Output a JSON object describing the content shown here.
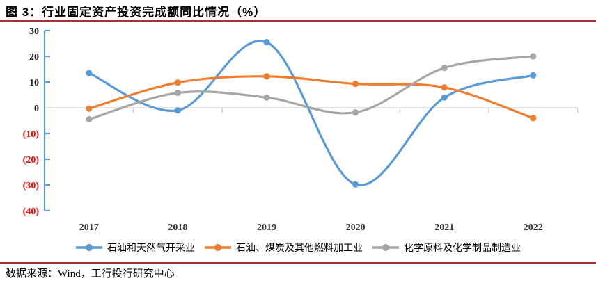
{
  "figure": {
    "title": "图 3：行业固定资产投资完成额同比情况（%）",
    "source_note": "数据来源：Wind，工行投行研究中心"
  },
  "colors": {
    "divider_rule": "#9A3836",
    "axis_line": "#5B9BD5",
    "zero_gridline": "#D9D9D9",
    "x_boundary_tick": "#C9C9C9",
    "positive_tick_label": "#1A1A1A",
    "negative_tick_label": "#FF0000",
    "x_tick_label": "#3B3B3B"
  },
  "chart_data": {
    "type": "line",
    "smoothed": true,
    "title": "行业固定资产投资完成额同比情况（%）",
    "categories": [
      "2017",
      "2018",
      "2019",
      "2020",
      "2021",
      "2022"
    ],
    "series": [
      {
        "name": "石油和天然气开采业",
        "color": "#5B9BD5",
        "values": [
          13.5,
          -1.0,
          25.5,
          -29.8,
          4.0,
          12.6
        ]
      },
      {
        "name": "石油、煤炭及其他燃料加工业",
        "color": "#ED7D31",
        "values": [
          -0.3,
          9.8,
          12.2,
          9.3,
          7.9,
          -4.0
        ]
      },
      {
        "name": "化学原料及化学制品制造业",
        "color": "#A6A6A6",
        "values": [
          -4.5,
          5.8,
          4.0,
          -1.8,
          15.5,
          20.0
        ]
      }
    ],
    "y_axis": {
      "range": [
        -40,
        30
      ],
      "ticks": [
        30,
        20,
        10,
        0,
        -10,
        -20,
        -30,
        -40
      ],
      "tick_labels": [
        "30",
        "20",
        "10",
        "0",
        "(10)",
        "(20)",
        "(30)",
        "(40)"
      ]
    },
    "xlabel": "",
    "ylabel": "",
    "grid": "zero-line-only",
    "legend_position": "bottom"
  }
}
